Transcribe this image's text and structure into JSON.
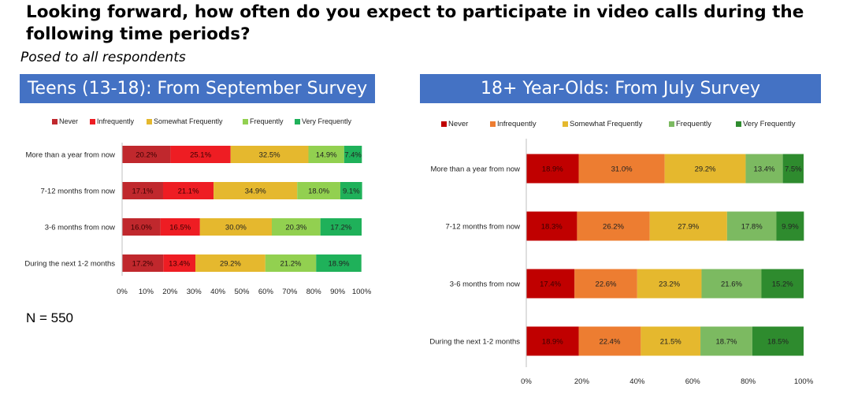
{
  "page": {
    "title": "Looking forward, how often do you expect to participate in video calls during the following time periods?",
    "subtitle": "Posed to all respondents",
    "n_label": "N = 550"
  },
  "chart_data": [
    {
      "type": "bar",
      "orientation": "horizontal",
      "stacked": true,
      "title": "Teens (13-18): From September Survey",
      "categories": [
        "More than a year from now",
        "7-12 months from now",
        "3-6 months from now",
        "During the next 1-2 months"
      ],
      "series": [
        {
          "name": "Never",
          "color": "#c0282d",
          "values": [
            20.2,
            17.1,
            16.0,
            17.2
          ]
        },
        {
          "name": "Infrequently",
          "color": "#ee1d23",
          "values": [
            25.1,
            21.1,
            16.5,
            13.4
          ]
        },
        {
          "name": "Somewhat Frequently",
          "color": "#e5b82e",
          "values": [
            32.5,
            34.9,
            30.0,
            29.2
          ]
        },
        {
          "name": "Frequently",
          "color": "#92d050",
          "values": [
            14.9,
            18.0,
            20.3,
            21.2
          ]
        },
        {
          "name": "Very Frequently",
          "color": "#1fb15a",
          "values": [
            7.4,
            9.1,
            17.2,
            18.9
          ]
        }
      ],
      "value_format": "percent_1dp",
      "xlim": [
        0,
        100
      ],
      "xticks": [
        "0%",
        "10%",
        "20%",
        "30%",
        "40%",
        "50%",
        "60%",
        "70%",
        "80%",
        "90%",
        "100%"
      ],
      "legend": "top",
      "grid": false
    },
    {
      "type": "bar",
      "orientation": "horizontal",
      "stacked": true,
      "title": "18+ Year-Olds: From July Survey",
      "categories": [
        "More than a year from now",
        "7-12 months from now",
        "3-6 months from now",
        "During the next 1-2 months"
      ],
      "series": [
        {
          "name": "Never",
          "color": "#c00000",
          "values": [
            18.9,
            18.3,
            17.4,
            18.9
          ]
        },
        {
          "name": "Infrequently",
          "color": "#ed7d31",
          "values": [
            31.0,
            26.2,
            22.6,
            22.4
          ]
        },
        {
          "name": "Somewhat Frequently",
          "color": "#e5b82e",
          "values": [
            29.2,
            27.9,
            23.2,
            21.5
          ]
        },
        {
          "name": "Frequently",
          "color": "#7cba61",
          "values": [
            13.4,
            17.8,
            21.6,
            18.7
          ]
        },
        {
          "name": "Very Frequently",
          "color": "#2e8b2e",
          "values": [
            7.5,
            9.9,
            15.2,
            18.5
          ]
        }
      ],
      "value_format": "percent_1dp",
      "xlim": [
        0,
        100
      ],
      "xticks": [
        "0%",
        "20%",
        "40%",
        "60%",
        "80%",
        "100%"
      ],
      "legend": "top",
      "grid": false
    }
  ]
}
